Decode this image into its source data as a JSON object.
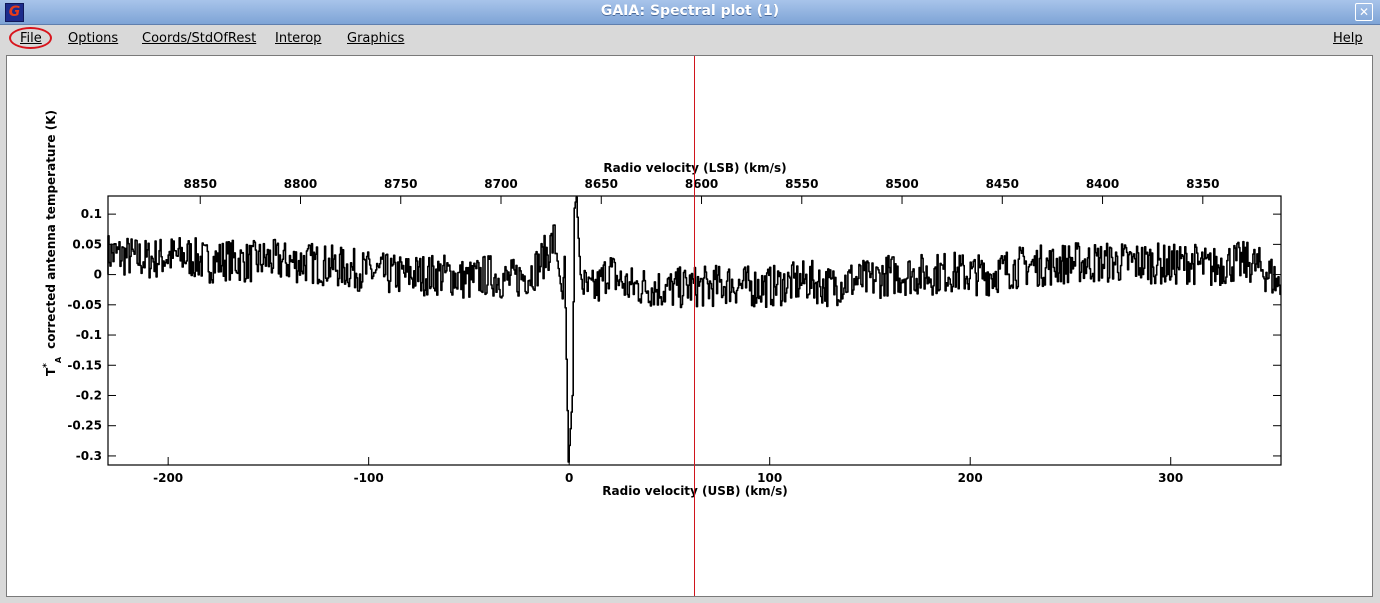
{
  "window": {
    "title": "GAIA: Spectral plot (1)",
    "app_icon": "G",
    "close_glyph": "✕"
  },
  "menu": {
    "file": "File",
    "options": "Options",
    "coords": "Coords/StdOfRest",
    "interop": "Interop",
    "graphics": "Graphics",
    "help": "Help"
  },
  "colors": {
    "cursor_line": "#d0141c",
    "highlight": "#d8141c",
    "trace": "#000000"
  },
  "chart_data": {
    "type": "line",
    "title": "",
    "xlabel": "Radio velocity (USB) (km/s)",
    "xlabel_top": "Radio velocity (LSB) (km/s)",
    "ylabel": "corrected antenna temperature (K)",
    "ylabel_symbol": "T",
    "ylabel_sub": "A",
    "ylabel_sup": "*",
    "xlim": [
      -230,
      355
    ],
    "ylim": [
      -0.315,
      0.13
    ],
    "x_ticks": [
      "-200",
      "-100",
      "0",
      "100",
      "200",
      "300"
    ],
    "x_tick_values": [
      -200,
      -100,
      0,
      100,
      200,
      300
    ],
    "top_ticks": [
      "8850",
      "8800",
      "8750",
      "8700",
      "8650",
      "8600",
      "8550",
      "8500",
      "8450",
      "8400",
      "8350"
    ],
    "top_tick_values": [
      8850,
      8800,
      8750,
      8700,
      8650,
      8600,
      8550,
      8500,
      8450,
      8400,
      8350
    ],
    "top_axis_mapping": {
      "lsb_at_usb_zero": 8666,
      "direction": -1
    },
    "y_ticks": [
      "0.1",
      "0.05",
      "0",
      "-0.05",
      "-0.1",
      "-0.15",
      "-0.2",
      "-0.25",
      "-0.3"
    ],
    "y_tick_values": [
      0.1,
      0.05,
      0,
      -0.05,
      -0.1,
      -0.15,
      -0.2,
      -0.25,
      -0.3
    ],
    "cursor_x": 62.5,
    "series": [
      {
        "x": [
          -230,
          -220,
          -210,
          -200,
          -190,
          -180,
          -170,
          -160,
          -150,
          -140,
          -130,
          -120,
          -110,
          -100,
          -90,
          -80,
          -70,
          -60,
          -50,
          -40,
          -30,
          -20,
          -15,
          -10,
          -7,
          -5,
          -3,
          -2,
          0,
          2,
          3,
          4,
          5,
          6,
          8,
          10,
          15,
          20,
          25,
          30,
          40,
          50,
          60,
          70,
          80,
          90,
          100,
          110,
          120,
          130,
          140,
          150,
          160,
          170,
          180,
          190,
          200,
          210,
          220,
          230,
          240,
          250,
          260,
          270,
          280,
          290,
          300,
          310,
          320,
          330,
          340,
          350,
          355
        ],
        "y": [
          0.035,
          0.03,
          0.025,
          0.03,
          0.03,
          0.02,
          0.025,
          0.02,
          0.025,
          0.02,
          0.02,
          0.015,
          0.01,
          0.005,
          0.0,
          0.0,
          0.0,
          0.0,
          -0.01,
          0.0,
          -0.01,
          0.0,
          0.015,
          0.04,
          0.06,
          0.01,
          -0.04,
          0.03,
          -0.31,
          -0.2,
          0.11,
          0.13,
          0.06,
          0.0,
          -0.02,
          -0.03,
          -0.02,
          0.01,
          -0.01,
          -0.02,
          -0.02,
          -0.025,
          -0.02,
          -0.02,
          -0.015,
          -0.02,
          -0.02,
          -0.015,
          -0.01,
          -0.02,
          -0.01,
          -0.01,
          0.0,
          0.0,
          0.0,
          0.005,
          0.0,
          0.0,
          0.01,
          0.015,
          0.015,
          0.02,
          0.02,
          0.02,
          0.02,
          0.02,
          0.015,
          0.02,
          0.01,
          0.02,
          0.02,
          0.0,
          -0.02
        ]
      }
    ]
  }
}
